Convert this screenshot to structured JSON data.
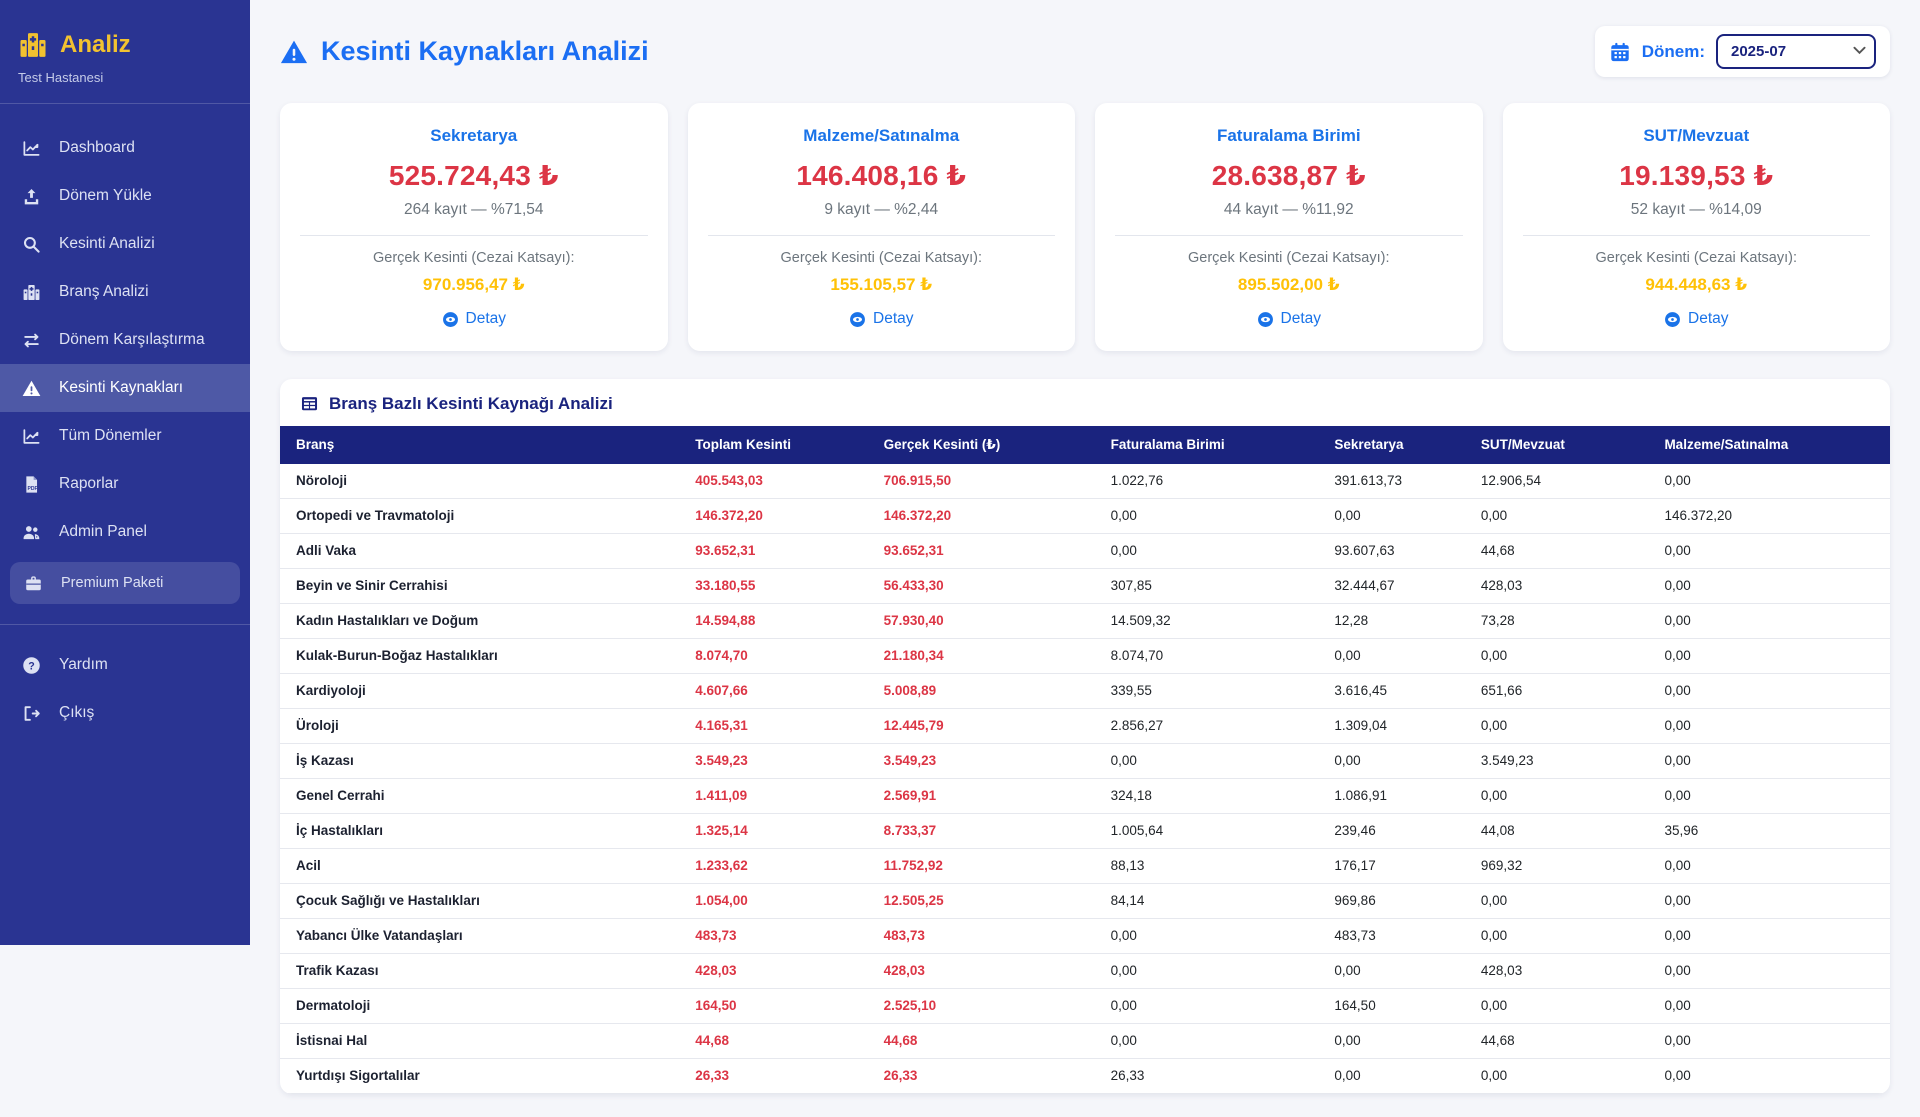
{
  "colors": {
    "sidebar_bg": "#2A3492",
    "sidebar_active_bg": "#4E59A6",
    "brand_yellow": "#F2C230",
    "page_bg": "#F5F6FA",
    "title_blue": "#1B6EF3",
    "card_title_blue": "#1A73E8",
    "danger_red": "#DC3545",
    "warning_orange": "#FFC107",
    "table_header_navy": "#1A237E"
  },
  "sidebar": {
    "brand": {
      "title": "Analiz",
      "subtitle": "Test Hastanesi"
    },
    "items": [
      {
        "name": "sidebar-item-dashboard",
        "label": "Dashboard",
        "icon": "chart-line"
      },
      {
        "name": "sidebar-item-donem-yukle",
        "label": "Dönem Yükle",
        "icon": "upload"
      },
      {
        "name": "sidebar-item-kesinti-analizi",
        "label": "Kesinti Analizi",
        "icon": "search"
      },
      {
        "name": "sidebar-item-brans-analizi",
        "label": "Branş Analizi",
        "icon": "hospital"
      },
      {
        "name": "sidebar-item-donem-karsilastirma",
        "label": "Dönem Karşılaştırma",
        "icon": "exchange"
      },
      {
        "name": "sidebar-item-kesinti-kaynaklari",
        "label": "Kesinti Kaynakları",
        "icon": "warning",
        "active": true
      },
      {
        "name": "sidebar-item-tum-donemler",
        "label": "Tüm Dönemler",
        "icon": "chart-line"
      },
      {
        "name": "sidebar-item-raporlar",
        "label": "Raporlar",
        "icon": "file-pdf"
      },
      {
        "name": "sidebar-item-admin-panel",
        "label": "Admin Panel",
        "icon": "users"
      },
      {
        "name": "sidebar-item-premium-paketi",
        "label": "Premium Paketi",
        "icon": "box",
        "pill": true
      }
    ],
    "footer_items": [
      {
        "name": "sidebar-item-yardim",
        "label": "Yardım",
        "icon": "question"
      },
      {
        "name": "sidebar-item-cikis",
        "label": "Çıkış",
        "icon": "logout"
      }
    ]
  },
  "header": {
    "title": "Kesinti Kaynakları Analizi",
    "period_label": "Dönem:",
    "period_value": "2025-07"
  },
  "cards": [
    {
      "name": "card-sekretarya",
      "title": "Sekretarya",
      "amount": "525.724,43 ₺",
      "meta": "264 kayıt — %71,54",
      "real_label": "Gerçek Kesinti (Cezai Katsayı):",
      "real_amount": "970.956,47 ₺",
      "detail_label": "Detay"
    },
    {
      "name": "card-malzeme-satinalma",
      "title": "Malzeme/Satınalma",
      "amount": "146.408,16 ₺",
      "meta": "9 kayıt — %2,44",
      "real_label": "Gerçek Kesinti (Cezai Katsayı):",
      "real_amount": "155.105,57 ₺",
      "detail_label": "Detay"
    },
    {
      "name": "card-faturalama-birimi",
      "title": "Faturalama Birimi",
      "amount": "28.638,87 ₺",
      "meta": "44 kayıt — %11,92",
      "real_label": "Gerçek Kesinti (Cezai Katsayı):",
      "real_amount": "895.502,00 ₺",
      "detail_label": "Detay"
    },
    {
      "name": "card-sut-mevzuat",
      "title": "SUT/Mevzuat",
      "amount": "19.139,53 ₺",
      "meta": "52 kayıt — %14,09",
      "real_label": "Gerçek Kesinti (Cezai Katsayı):",
      "real_amount": "944.448,63 ₺",
      "detail_label": "Detay"
    }
  ],
  "table": {
    "title": "Branş Bazlı Kesinti Kaynağı Analizi",
    "columns": [
      "Branş",
      "Toplam Kesinti",
      "Gerçek Kesinti (₺)",
      "Faturalama Birimi",
      "Sekretarya",
      "SUT/Mevzuat",
      "Malzeme/Satınalma"
    ],
    "rows": [
      {
        "brans": "Nöroloji",
        "toplam": "405.543,03",
        "gercek": "706.915,50",
        "fatura": "1.022,76",
        "sekretarya": "391.613,73",
        "sut": "12.906,54",
        "malzeme": "0,00"
      },
      {
        "brans": "Ortopedi ve Travmatoloji",
        "toplam": "146.372,20",
        "gercek": "146.372,20",
        "fatura": "0,00",
        "sekretarya": "0,00",
        "sut": "0,00",
        "malzeme": "146.372,20"
      },
      {
        "brans": "Adli Vaka",
        "toplam": "93.652,31",
        "gercek": "93.652,31",
        "fatura": "0,00",
        "sekretarya": "93.607,63",
        "sut": "44,68",
        "malzeme": "0,00"
      },
      {
        "brans": "Beyin ve Sinir Cerrahisi",
        "toplam": "33.180,55",
        "gercek": "56.433,30",
        "fatura": "307,85",
        "sekretarya": "32.444,67",
        "sut": "428,03",
        "malzeme": "0,00"
      },
      {
        "brans": "Kadın Hastalıkları ve Doğum",
        "toplam": "14.594,88",
        "gercek": "57.930,40",
        "fatura": "14.509,32",
        "sekretarya": "12,28",
        "sut": "73,28",
        "malzeme": "0,00"
      },
      {
        "brans": "Kulak-Burun-Boğaz Hastalıkları",
        "toplam": "8.074,70",
        "gercek": "21.180,34",
        "fatura": "8.074,70",
        "sekretarya": "0,00",
        "sut": "0,00",
        "malzeme": "0,00"
      },
      {
        "brans": "Kardiyoloji",
        "toplam": "4.607,66",
        "gercek": "5.008,89",
        "fatura": "339,55",
        "sekretarya": "3.616,45",
        "sut": "651,66",
        "malzeme": "0,00"
      },
      {
        "brans": "Üroloji",
        "toplam": "4.165,31",
        "gercek": "12.445,79",
        "fatura": "2.856,27",
        "sekretarya": "1.309,04",
        "sut": "0,00",
        "malzeme": "0,00"
      },
      {
        "brans": "İş Kazası",
        "toplam": "3.549,23",
        "gercek": "3.549,23",
        "fatura": "0,00",
        "sekretarya": "0,00",
        "sut": "3.549,23",
        "malzeme": "0,00"
      },
      {
        "brans": "Genel Cerrahi",
        "toplam": "1.411,09",
        "gercek": "2.569,91",
        "fatura": "324,18",
        "sekretarya": "1.086,91",
        "sut": "0,00",
        "malzeme": "0,00"
      },
      {
        "brans": "İç Hastalıkları",
        "toplam": "1.325,14",
        "gercek": "8.733,37",
        "fatura": "1.005,64",
        "sekretarya": "239,46",
        "sut": "44,08",
        "malzeme": "35,96"
      },
      {
        "brans": "Acil",
        "toplam": "1.233,62",
        "gercek": "11.752,92",
        "fatura": "88,13",
        "sekretarya": "176,17",
        "sut": "969,32",
        "malzeme": "0,00"
      },
      {
        "brans": "Çocuk Sağlığı ve Hastalıkları",
        "toplam": "1.054,00",
        "gercek": "12.505,25",
        "fatura": "84,14",
        "sekretarya": "969,86",
        "sut": "0,00",
        "malzeme": "0,00"
      },
      {
        "brans": "Yabancı Ülke Vatandaşları",
        "toplam": "483,73",
        "gercek": "483,73",
        "fatura": "0,00",
        "sekretarya": "483,73",
        "sut": "0,00",
        "malzeme": "0,00"
      },
      {
        "brans": "Trafik Kazası",
        "toplam": "428,03",
        "gercek": "428,03",
        "fatura": "0,00",
        "sekretarya": "0,00",
        "sut": "428,03",
        "malzeme": "0,00"
      },
      {
        "brans": "Dermatoloji",
        "toplam": "164,50",
        "gercek": "2.525,10",
        "fatura": "0,00",
        "sekretarya": "164,50",
        "sut": "0,00",
        "malzeme": "0,00"
      },
      {
        "brans": "İstisnai Hal",
        "toplam": "44,68",
        "gercek": "44,68",
        "fatura": "0,00",
        "sekretarya": "0,00",
        "sut": "44,68",
        "malzeme": "0,00"
      },
      {
        "brans": "Yurtdışı Sigortalılar",
        "toplam": "26,33",
        "gercek": "26,33",
        "fatura": "26,33",
        "sekretarya": "0,00",
        "sut": "0,00",
        "malzeme": "0,00"
      }
    ]
  }
}
